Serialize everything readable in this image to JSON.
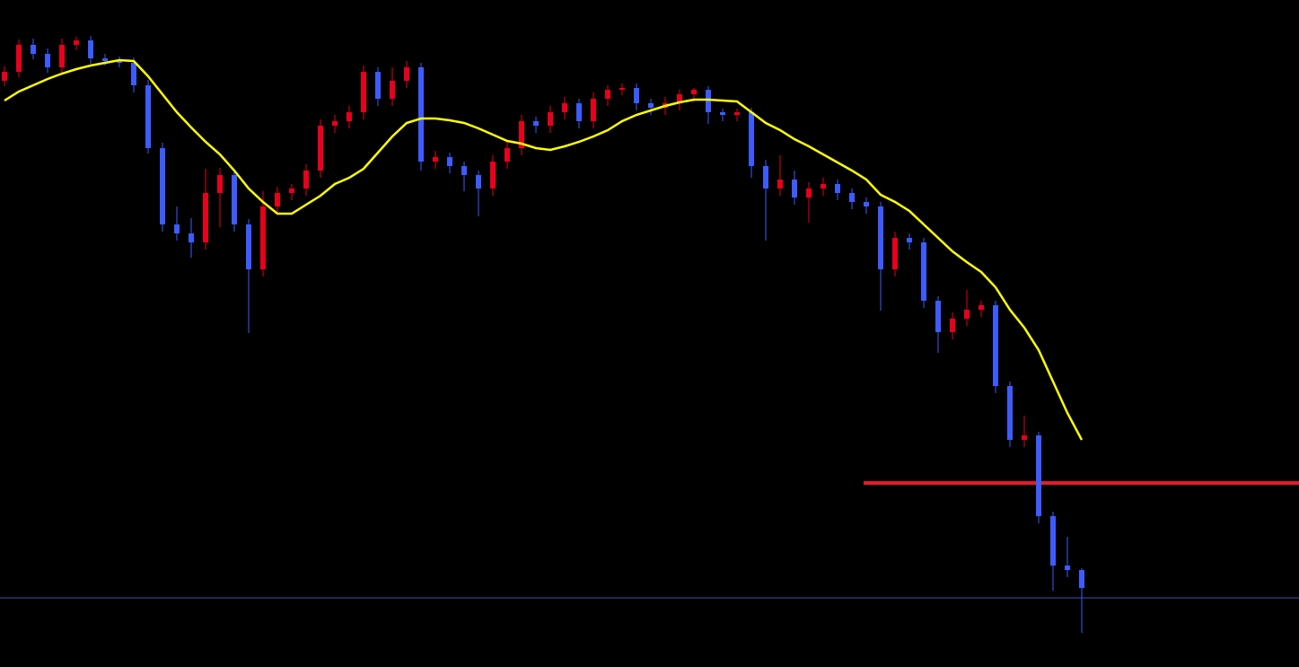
{
  "chart_data": {
    "type": "candlestick",
    "ylim": [
      0,
      743
    ],
    "grid": false,
    "up_color": "#e8001c",
    "down_color": "#3d5cff",
    "ohlc": [
      [
        653,
        669,
        647,
        663
      ],
      [
        663,
        699,
        657,
        693
      ],
      [
        693,
        700,
        677,
        683
      ],
      [
        683,
        689,
        662,
        668
      ],
      [
        668,
        700,
        662,
        693
      ],
      [
        693,
        702,
        687,
        698
      ],
      [
        698,
        703,
        672,
        678
      ],
      [
        678,
        683,
        670,
        675
      ],
      [
        675,
        680,
        668,
        673
      ],
      [
        673,
        679,
        640,
        648
      ],
      [
        648,
        654,
        572,
        578
      ],
      [
        578,
        584,
        485,
        493
      ],
      [
        493,
        513,
        475,
        483
      ],
      [
        483,
        500,
        456,
        473
      ],
      [
        473,
        555,
        465,
        528
      ],
      [
        528,
        556,
        490,
        548
      ],
      [
        548,
        555,
        485,
        493
      ],
      [
        493,
        499,
        372,
        443
      ],
      [
        443,
        530,
        435,
        513
      ],
      [
        513,
        535,
        505,
        528
      ],
      [
        528,
        538,
        520,
        533
      ],
      [
        533,
        560,
        525,
        553
      ],
      [
        553,
        610,
        545,
        603
      ],
      [
        603,
        615,
        595,
        608
      ],
      [
        608,
        625,
        600,
        618
      ],
      [
        618,
        670,
        610,
        663
      ],
      [
        663,
        668,
        625,
        633
      ],
      [
        633,
        668,
        625,
        653
      ],
      [
        653,
        675,
        645,
        668
      ],
      [
        668,
        673,
        553,
        563
      ],
      [
        563,
        575,
        555,
        568
      ],
      [
        568,
        573,
        550,
        558
      ],
      [
        558,
        563,
        530,
        548
      ],
      [
        548,
        553,
        502,
        533
      ],
      [
        533,
        570,
        525,
        563
      ],
      [
        563,
        585,
        555,
        578
      ],
      [
        578,
        615,
        570,
        608
      ],
      [
        608,
        613,
        595,
        603
      ],
      [
        603,
        625,
        595,
        618
      ],
      [
        618,
        635,
        610,
        628
      ],
      [
        628,
        633,
        600,
        608
      ],
      [
        608,
        640,
        600,
        633
      ],
      [
        633,
        648,
        625,
        643
      ],
      [
        643,
        650,
        637,
        645
      ],
      [
        645,
        650,
        620,
        628
      ],
      [
        628,
        633,
        615,
        623
      ],
      [
        623,
        635,
        615,
        628
      ],
      [
        628,
        643,
        620,
        638
      ],
      [
        638,
        645,
        630,
        643
      ],
      [
        643,
        647,
        605,
        618
      ],
      [
        618,
        622,
        608,
        615
      ],
      [
        615,
        622,
        608,
        618
      ],
      [
        618,
        623,
        545,
        558
      ],
      [
        558,
        565,
        475,
        533
      ],
      [
        533,
        570,
        525,
        543
      ],
      [
        543,
        553,
        515,
        523
      ],
      [
        523,
        540,
        495,
        533
      ],
      [
        533,
        545,
        525,
        538
      ],
      [
        538,
        543,
        520,
        528
      ],
      [
        528,
        533,
        510,
        518
      ],
      [
        518,
        523,
        505,
        513
      ],
      [
        513,
        518,
        397,
        443
      ],
      [
        443,
        485,
        435,
        478
      ],
      [
        478,
        483,
        465,
        473
      ],
      [
        473,
        478,
        400,
        408
      ],
      [
        408,
        413,
        350,
        373
      ],
      [
        373,
        395,
        365,
        388
      ],
      [
        388,
        420,
        380,
        398
      ],
      [
        398,
        408,
        390,
        403
      ],
      [
        403,
        408,
        305,
        313
      ],
      [
        313,
        318,
        245,
        253
      ],
      [
        253,
        280,
        245,
        258
      ],
      [
        258,
        262,
        160,
        168
      ],
      [
        168,
        173,
        85,
        113
      ],
      [
        113,
        145,
        100,
        108
      ],
      [
        108,
        110,
        38,
        88
      ]
    ],
    "overlays": [
      {
        "type": "line",
        "color": "#ffff00",
        "values": [
          631,
          641,
          648,
          655,
          661,
          666,
          670,
          673,
          676,
          675,
          658,
          638,
          618,
          601,
          585,
          571,
          553,
          533,
          518,
          505,
          505,
          515,
          525,
          538,
          545,
          555,
          573,
          591,
          606,
          611,
          611,
          609,
          606,
          600,
          593,
          586,
          583,
          578,
          576,
          580,
          585,
          591,
          598,
          608,
          615,
          620,
          625,
          629,
          632,
          632,
          631,
          630,
          618,
          606,
          598,
          588,
          580,
          571,
          562,
          553,
          543,
          526,
          518,
          508,
          493,
          478,
          463,
          451,
          440,
          423,
          398,
          378,
          353,
          318,
          283,
          253
        ]
      }
    ],
    "levels": [
      {
        "value": 205,
        "color": "#e8192c",
        "from": 60,
        "width": 4
      },
      {
        "value": 77,
        "color": "#4a4ab8",
        "width": 1
      }
    ]
  }
}
